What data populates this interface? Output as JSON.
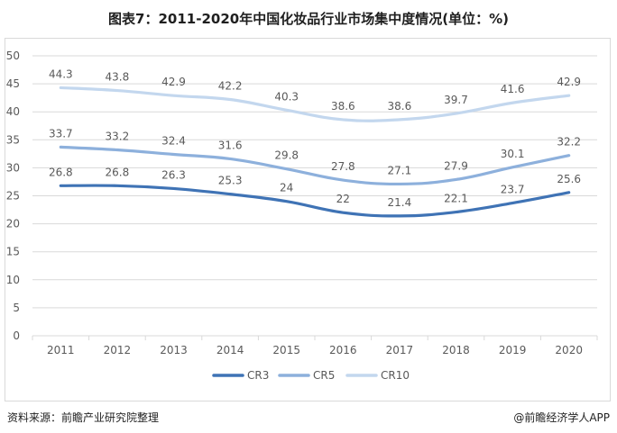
{
  "title": "图表7：2011-2020年中国化妆品行业市场集中度情况(单位：%)",
  "footer": {
    "source": "资料来源：前瞻产业研究院整理",
    "brand": "@前瞻经济学人APP"
  },
  "colors": {
    "CR3": "#3f73b5",
    "CR5": "#8db0dc",
    "CR10": "#c3d7ee",
    "grid": "#d9d9d9"
  },
  "chart_data": {
    "type": "line",
    "title": "图表7：2011-2020年中国化妆品行业市场集中度情况(单位：%)",
    "xlabel": "",
    "ylabel": "",
    "categories": [
      "2011",
      "2012",
      "2013",
      "2014",
      "2015",
      "2016",
      "2017",
      "2018",
      "2019",
      "2020"
    ],
    "ylim": [
      0,
      50
    ],
    "yticks": [
      0,
      5,
      10,
      15,
      20,
      25,
      30,
      35,
      40,
      45,
      50
    ],
    "grid": true,
    "legend": "bottom",
    "series": [
      {
        "name": "CR3",
        "values": [
          26.8,
          26.8,
          26.3,
          25.3,
          24,
          22,
          21.4,
          22.1,
          23.7,
          25.6
        ]
      },
      {
        "name": "CR5",
        "values": [
          33.7,
          33.2,
          32.4,
          31.6,
          29.8,
          27.8,
          27.1,
          27.9,
          30.1,
          32.2
        ]
      },
      {
        "name": "CR10",
        "values": [
          44.3,
          43.8,
          42.9,
          42.2,
          40.3,
          38.6,
          38.6,
          39.7,
          41.6,
          42.9
        ]
      }
    ]
  }
}
